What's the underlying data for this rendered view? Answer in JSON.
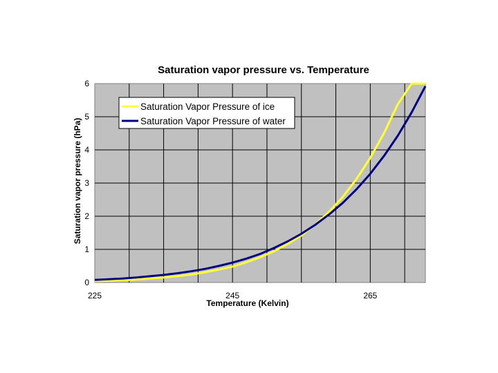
{
  "chart_data": {
    "type": "line",
    "title": "Saturation vapor pressure vs. Temperature",
    "xlabel": "Temperature (Kelvin)",
    "ylabel": "Saturation vapor pressure (hPa)",
    "xlim": [
      225,
      273
    ],
    "ylim": [
      0,
      6
    ],
    "x_tick_labels": [
      "225",
      "245",
      "265"
    ],
    "y_tick_labels": [
      "0",
      "1",
      "2",
      "3",
      "4",
      "5",
      "6"
    ],
    "grid": true,
    "plot_background": "#c0c0c0",
    "legend_position": "top-left",
    "x": [
      225,
      227,
      229,
      231,
      233,
      235,
      237,
      239,
      241,
      243,
      245,
      247,
      249,
      251,
      253,
      255,
      257,
      259,
      261,
      263,
      265,
      267,
      269,
      271,
      273
    ],
    "series": [
      {
        "name": "Saturation Vapor Pressure of ice",
        "color": "#ffff33",
        "values": [
          0.04,
          0.05,
          0.07,
          0.09,
          0.12,
          0.15,
          0.19,
          0.24,
          0.31,
          0.39,
          0.48,
          0.61,
          0.76,
          0.94,
          1.16,
          1.42,
          1.75,
          2.13,
          2.58,
          3.12,
          3.76,
          4.51,
          5.38,
          6.39,
          6.11
        ]
      },
      {
        "name": "Saturation Vapor Pressure of water",
        "color": "#000080",
        "values": [
          0.08,
          0.1,
          0.12,
          0.15,
          0.19,
          0.23,
          0.28,
          0.34,
          0.41,
          0.5,
          0.6,
          0.72,
          0.86,
          1.04,
          1.24,
          1.47,
          1.74,
          2.05,
          2.4,
          2.81,
          3.28,
          3.82,
          4.43,
          5.13,
          5.92
        ]
      }
    ]
  }
}
